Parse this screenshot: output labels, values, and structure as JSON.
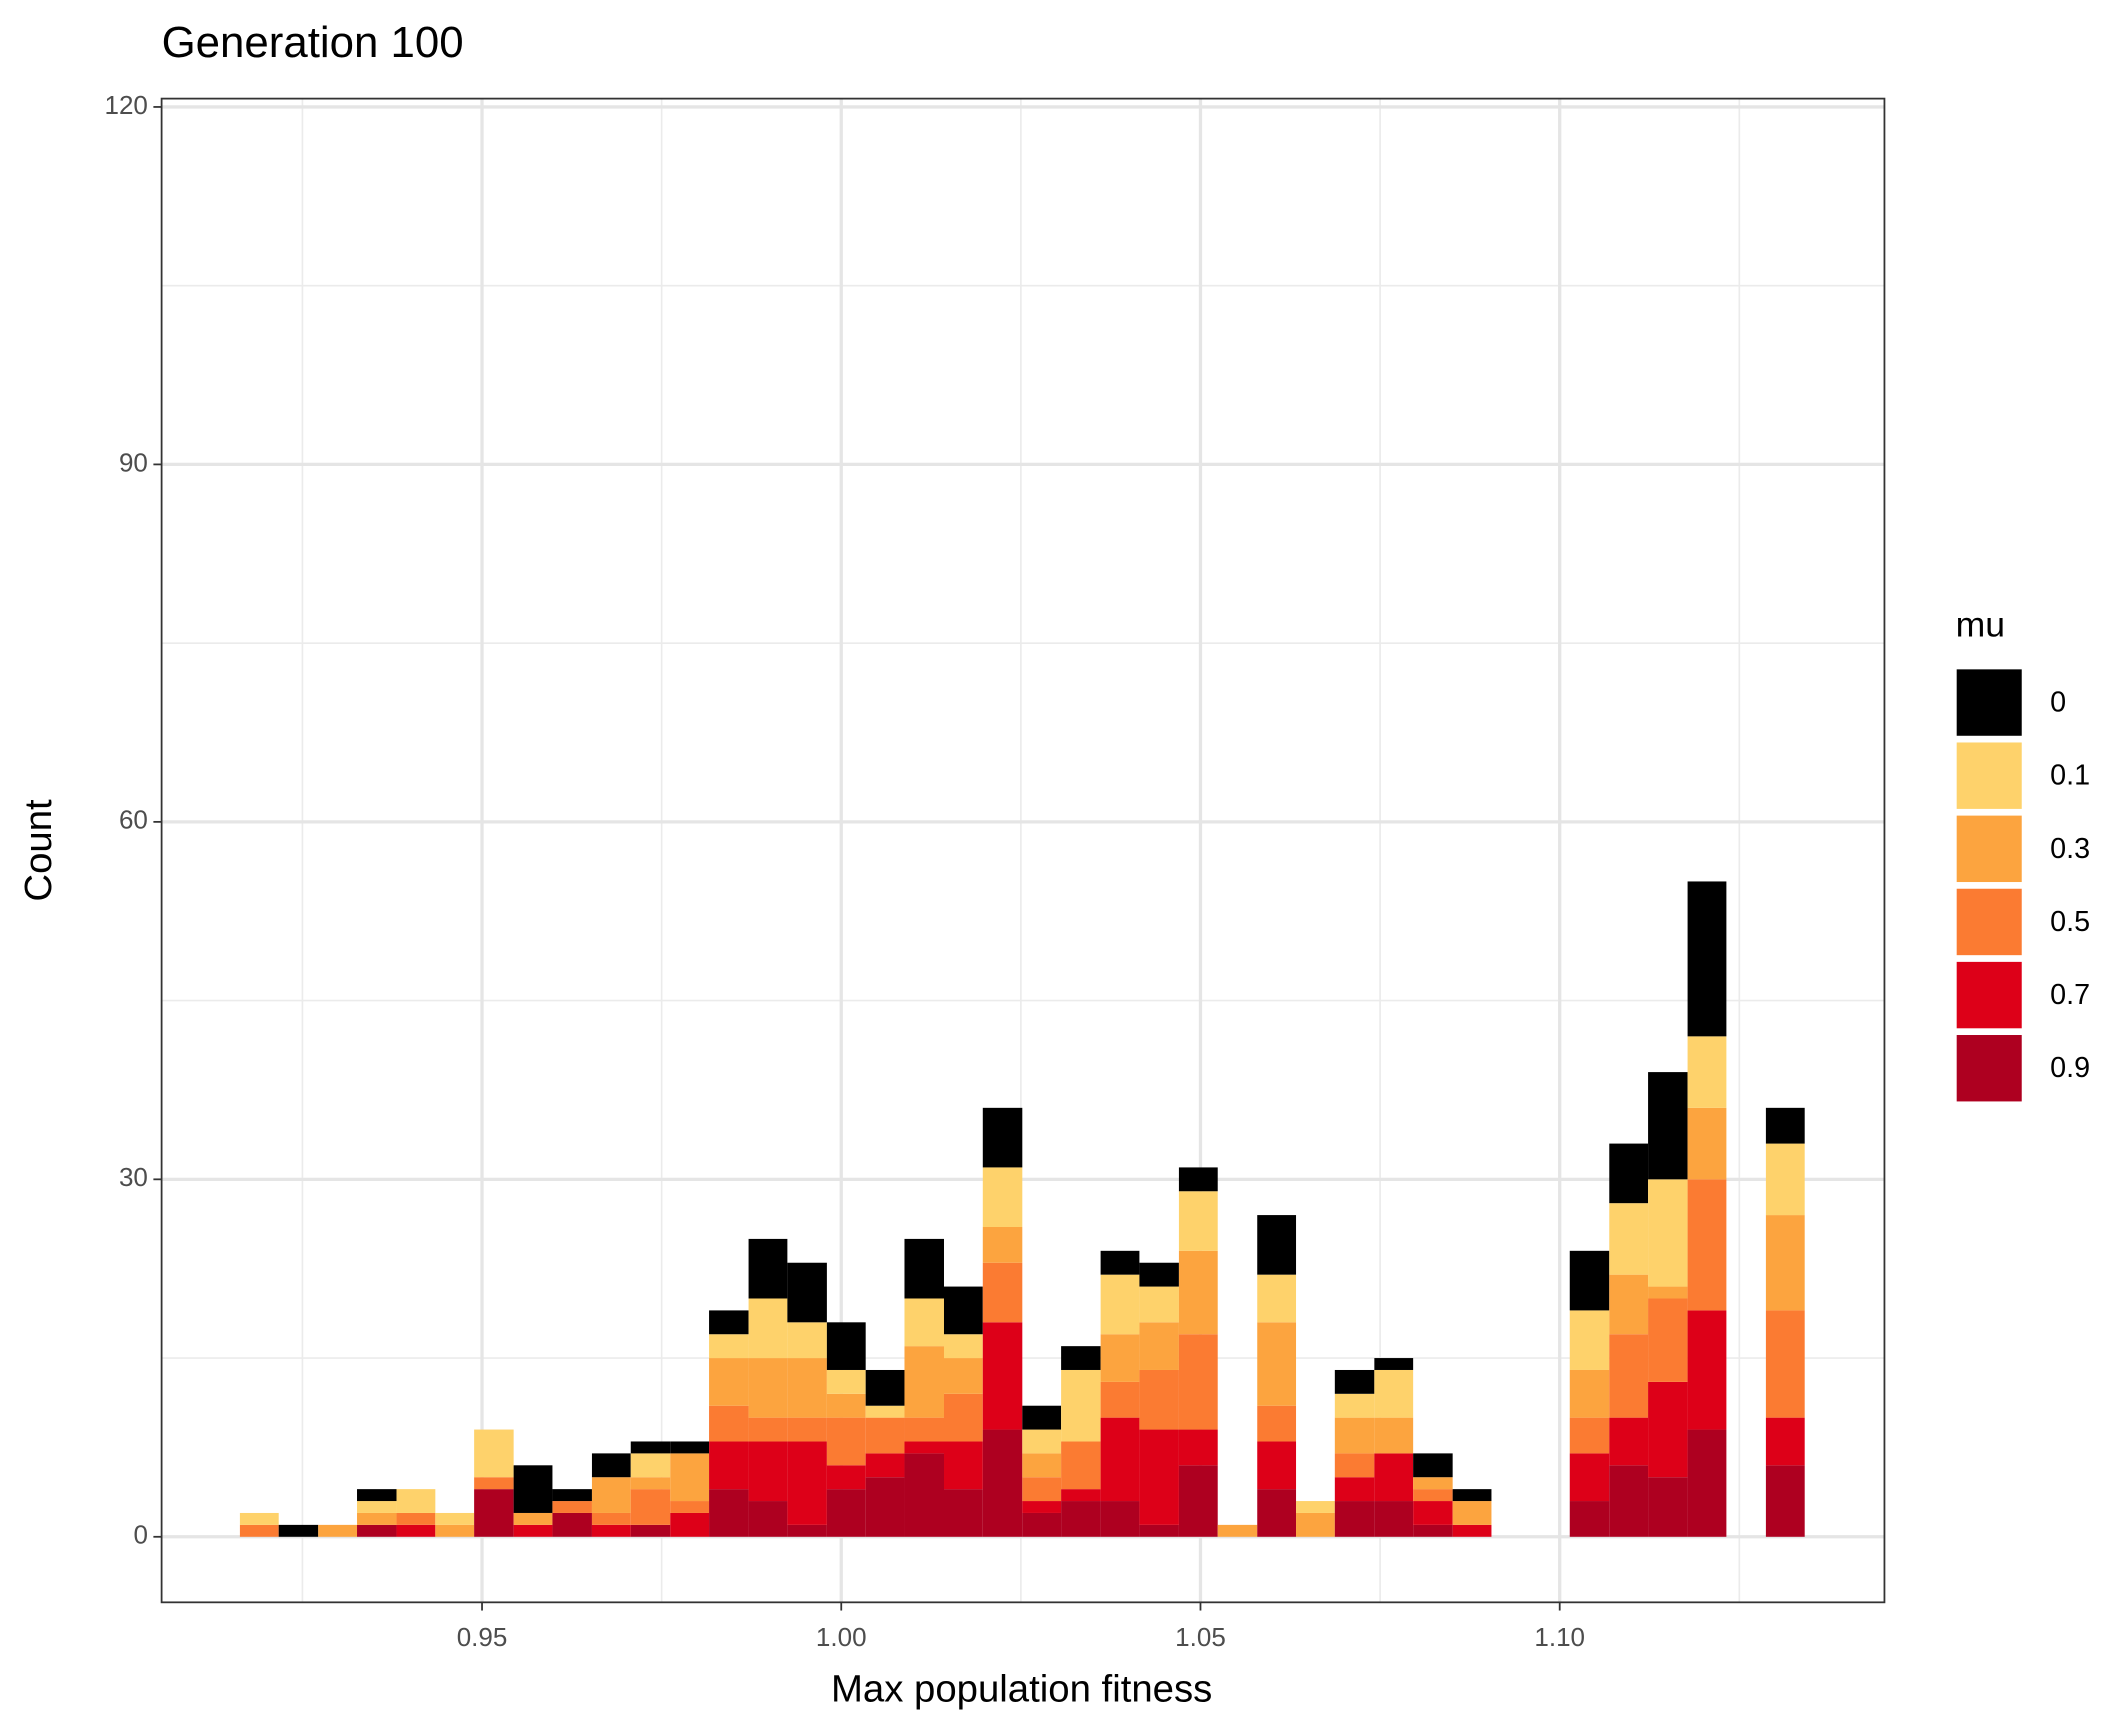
{
  "chart_data": {
    "type": "histogram",
    "title": "Generation 100",
    "xlabel": "Max population fitness",
    "ylabel": "Count",
    "legend_title": "mu",
    "legend": "right",
    "grid": true,
    "bins": [
      0.9163,
      0.9217,
      0.9272,
      0.9326,
      0.9381,
      0.9435,
      0.9489,
      0.9544,
      0.9598,
      0.9653,
      0.9707,
      0.9762,
      0.9816,
      0.9871,
      0.9925,
      0.998,
      1.0034,
      1.0088,
      1.0143,
      1.0197,
      1.0252,
      1.0306,
      1.0361,
      1.0415,
      1.047,
      1.0524,
      1.0579,
      1.0633,
      1.0687,
      1.0742,
      1.0796,
      1.0851,
      1.0905,
      1.096,
      1.1014,
      1.1069,
      1.1123,
      1.1178,
      1.1232,
      1.1287,
      1.1341
    ],
    "series": [
      {
        "name": "0",
        "color": "#000000",
        "values": [
          0,
          1,
          0,
          1,
          0,
          0,
          0,
          4,
          1,
          2,
          1,
          1,
          2,
          5,
          5,
          4,
          3,
          5,
          4,
          5,
          2,
          2,
          2,
          2,
          2,
          0,
          5,
          0,
          2,
          1,
          2,
          1,
          0,
          0,
          5,
          5,
          9,
          13,
          0,
          3
        ]
      },
      {
        "name": "0.1",
        "color": "#fed26b",
        "values": [
          1,
          0,
          0,
          1,
          2,
          1,
          4,
          0,
          0,
          0,
          2,
          0,
          2,
          5,
          3,
          2,
          1,
          4,
          2,
          5,
          2,
          6,
          5,
          3,
          5,
          0,
          4,
          1,
          2,
          4,
          0,
          0,
          0,
          0,
          5,
          6,
          9,
          6,
          0,
          6
        ]
      },
      {
        "name": "0.3",
        "color": "#fca43f",
        "values": [
          0,
          0,
          1,
          1,
          0,
          1,
          0,
          1,
          0,
          3,
          1,
          4,
          4,
          5,
          5,
          2,
          0,
          6,
          3,
          3,
          2,
          0,
          4,
          4,
          7,
          1,
          7,
          2,
          3,
          3,
          1,
          2,
          0,
          0,
          4,
          5,
          1,
          6,
          0,
          8
        ]
      },
      {
        "name": "0.5",
        "color": "#fb7b32",
        "values": [
          1,
          0,
          0,
          0,
          1,
          0,
          1,
          0,
          1,
          1,
          3,
          1,
          3,
          2,
          2,
          4,
          3,
          2,
          4,
          5,
          2,
          4,
          3,
          5,
          8,
          0,
          3,
          0,
          2,
          0,
          1,
          0,
          0,
          0,
          3,
          7,
          7,
          11,
          0,
          9
        ]
      },
      {
        "name": "0.7",
        "color": "#dd0018",
        "values": [
          0,
          0,
          0,
          0,
          1,
          0,
          0,
          1,
          0,
          1,
          0,
          2,
          4,
          5,
          7,
          2,
          2,
          1,
          4,
          9,
          1,
          1,
          7,
          8,
          3,
          0,
          4,
          0,
          2,
          4,
          2,
          1,
          0,
          0,
          4,
          4,
          8,
          10,
          0,
          4
        ]
      },
      {
        "name": "0.9",
        "color": "#ae0020",
        "values": [
          0,
          0,
          0,
          1,
          0,
          0,
          4,
          0,
          2,
          0,
          1,
          0,
          4,
          3,
          1,
          4,
          5,
          7,
          4,
          9,
          2,
          3,
          3,
          1,
          6,
          0,
          4,
          0,
          3,
          3,
          1,
          0,
          0,
          0,
          3,
          6,
          5,
          9,
          0,
          6
        ]
      }
    ],
    "xlim": [
      0.9054,
      1.1452
    ],
    "ylim": [
      -5.5,
      120.7
    ],
    "xticks": [
      {
        "value": 0.95,
        "label": "0.95"
      },
      {
        "value": 1.0,
        "label": "1.00"
      },
      {
        "value": 1.05,
        "label": "1.05"
      },
      {
        "value": 1.1,
        "label": "1.10"
      }
    ],
    "yticks": [
      0,
      30,
      60,
      90,
      120
    ],
    "xminor": [
      0.925,
      0.975,
      1.025,
      1.075,
      1.125
    ],
    "yminor": [
      15,
      45,
      75,
      105
    ]
  }
}
